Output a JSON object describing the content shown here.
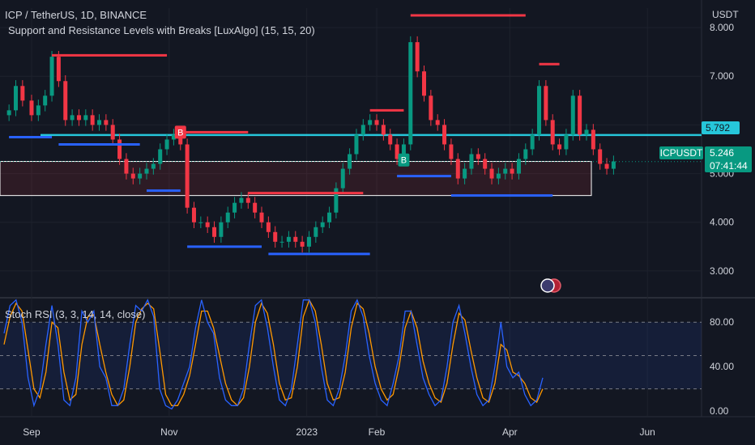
{
  "header": {
    "title": "ICP / TetherUS, 1D, BINANCE",
    "indicator": "Support and Resistance Levels with Breaks [LuxAlgo] (15, 15, 20)",
    "currency": "USDT"
  },
  "price_tags": {
    "symbol": "ICPUSDT",
    "last_price": "5.246",
    "countdown": "07:41:44",
    "resistance_price": "5.792"
  },
  "oscillator": {
    "title": "Stoch RSI (3, 3, 14, 14, close)",
    "ticks": [
      "80.00",
      "40.00",
      "0.00"
    ]
  },
  "colors": {
    "background": "#131722",
    "up": "#089981",
    "down": "#f23645",
    "resistance": "#f23645",
    "support": "#2962ff",
    "horizontal": "#26c6da",
    "k_line": "#2962ff",
    "d_line": "#ff9800"
  },
  "chart_data": [
    {
      "type": "candlestick",
      "title": "ICP / TetherUS, 1D, BINANCE",
      "x_ticks": [
        "Sep",
        "Nov",
        "2023",
        "Feb",
        "Apr",
        "Jun"
      ],
      "y_ticks": [
        "8.000",
        "7.000",
        "6.000",
        "5.000",
        "4.000",
        "3.000"
      ],
      "ylim": [
        2.5,
        8.4
      ],
      "close_series": [
        {
          "date": "2022-08-22",
          "close": 6.3
        },
        {
          "date": "2022-08-25",
          "close": 6.8
        },
        {
          "date": "2022-08-28",
          "close": 6.5
        },
        {
          "date": "2022-09-01",
          "close": 6.2
        },
        {
          "date": "2022-09-04",
          "close": 6.4
        },
        {
          "date": "2022-09-07",
          "close": 6.6
        },
        {
          "date": "2022-09-10",
          "close": 7.4
        },
        {
          "date": "2022-09-13",
          "close": 6.9
        },
        {
          "date": "2022-09-16",
          "close": 6.1
        },
        {
          "date": "2022-09-19",
          "close": 6.2
        },
        {
          "date": "2022-09-22",
          "close": 6.1
        },
        {
          "date": "2022-09-25",
          "close": 6.2
        },
        {
          "date": "2022-09-28",
          "close": 6.0
        },
        {
          "date": "2022-10-01",
          "close": 6.1
        },
        {
          "date": "2022-10-04",
          "close": 6.0
        },
        {
          "date": "2022-10-07",
          "close": 5.7
        },
        {
          "date": "2022-10-10",
          "close": 5.3
        },
        {
          "date": "2022-10-13",
          "close": 5.0
        },
        {
          "date": "2022-10-16",
          "close": 4.9
        },
        {
          "date": "2022-10-19",
          "close": 5.0
        },
        {
          "date": "2022-10-22",
          "close": 5.1
        },
        {
          "date": "2022-10-25",
          "close": 5.2
        },
        {
          "date": "2022-10-28",
          "close": 5.5
        },
        {
          "date": "2022-10-31",
          "close": 5.7
        },
        {
          "date": "2022-11-03",
          "close": 5.8
        },
        {
          "date": "2022-11-06",
          "close": 5.6
        },
        {
          "date": "2022-11-09",
          "close": 4.3
        },
        {
          "date": "2022-11-12",
          "close": 4.0
        },
        {
          "date": "2022-11-15",
          "close": 4.0
        },
        {
          "date": "2022-11-18",
          "close": 3.9
        },
        {
          "date": "2022-11-21",
          "close": 3.7
        },
        {
          "date": "2022-11-24",
          "close": 4.0
        },
        {
          "date": "2022-11-27",
          "close": 4.2
        },
        {
          "date": "2022-11-30",
          "close": 4.4
        },
        {
          "date": "2022-12-03",
          "close": 4.5
        },
        {
          "date": "2022-12-06",
          "close": 4.4
        },
        {
          "date": "2022-12-09",
          "close": 4.2
        },
        {
          "date": "2022-12-12",
          "close": 4.0
        },
        {
          "date": "2022-12-15",
          "close": 3.8
        },
        {
          "date": "2022-12-18",
          "close": 3.6
        },
        {
          "date": "2022-12-21",
          "close": 3.6
        },
        {
          "date": "2022-12-24",
          "close": 3.7
        },
        {
          "date": "2022-12-27",
          "close": 3.6
        },
        {
          "date": "2022-12-30",
          "close": 3.5
        },
        {
          "date": "2023-01-02",
          "close": 3.7
        },
        {
          "date": "2023-01-05",
          "close": 3.9
        },
        {
          "date": "2023-01-08",
          "close": 4.0
        },
        {
          "date": "2023-01-11",
          "close": 4.2
        },
        {
          "date": "2023-01-14",
          "close": 4.7
        },
        {
          "date": "2023-01-17",
          "close": 5.1
        },
        {
          "date": "2023-01-20",
          "close": 5.4
        },
        {
          "date": "2023-01-23",
          "close": 5.8
        },
        {
          "date": "2023-01-26",
          "close": 6.0
        },
        {
          "date": "2023-01-29",
          "close": 6.1
        },
        {
          "date": "2023-02-01",
          "close": 6.0
        },
        {
          "date": "2023-02-04",
          "close": 5.8
        },
        {
          "date": "2023-02-07",
          "close": 5.6
        },
        {
          "date": "2023-02-10",
          "close": 5.3
        },
        {
          "date": "2023-02-13",
          "close": 5.6
        },
        {
          "date": "2023-02-16",
          "close": 7.7
        },
        {
          "date": "2023-02-19",
          "close": 7.1
        },
        {
          "date": "2023-02-22",
          "close": 6.6
        },
        {
          "date": "2023-02-25",
          "close": 6.1
        },
        {
          "date": "2023-02-28",
          "close": 6.0
        },
        {
          "date": "2023-03-03",
          "close": 5.6
        },
        {
          "date": "2023-03-06",
          "close": 5.3
        },
        {
          "date": "2023-03-09",
          "close": 4.9
        },
        {
          "date": "2023-03-12",
          "close": 5.1
        },
        {
          "date": "2023-03-15",
          "close": 5.4
        },
        {
          "date": "2023-03-18",
          "close": 5.3
        },
        {
          "date": "2023-03-21",
          "close": 5.1
        },
        {
          "date": "2023-03-24",
          "close": 4.9
        },
        {
          "date": "2023-03-27",
          "close": 5.0
        },
        {
          "date": "2023-03-30",
          "close": 5.1
        },
        {
          "date": "2023-04-02",
          "close": 5.0
        },
        {
          "date": "2023-04-05",
          "close": 5.3
        },
        {
          "date": "2023-04-08",
          "close": 5.5
        },
        {
          "date": "2023-04-11",
          "close": 5.8
        },
        {
          "date": "2023-04-14",
          "close": 6.8
        },
        {
          "date": "2023-04-17",
          "close": 6.1
        },
        {
          "date": "2023-04-20",
          "close": 5.6
        },
        {
          "date": "2023-04-23",
          "close": 5.5
        },
        {
          "date": "2023-04-26",
          "close": 5.8
        },
        {
          "date": "2023-04-29",
          "close": 6.6
        },
        {
          "date": "2023-05-02",
          "close": 5.8
        },
        {
          "date": "2023-05-05",
          "close": 5.9
        },
        {
          "date": "2023-05-08",
          "close": 5.5
        },
        {
          "date": "2023-05-11",
          "close": 5.2
        },
        {
          "date": "2023-05-14",
          "close": 5.1
        },
        {
          "date": "2023-05-17",
          "close": 5.25
        }
      ],
      "resistance_levels": [
        {
          "start": "2022-09-10",
          "end": "2022-10-31",
          "value": 7.43
        },
        {
          "start": "2022-11-06",
          "end": "2022-12-06",
          "value": 5.85
        },
        {
          "start": "2022-12-06",
          "end": "2023-01-26",
          "value": 4.6
        },
        {
          "start": "2023-01-29",
          "end": "2023-02-13",
          "value": 6.3
        },
        {
          "start": "2023-02-16",
          "end": "2023-04-08",
          "value": 8.25
        },
        {
          "start": "2023-04-14",
          "end": "2023-04-23",
          "value": 7.25
        }
      ],
      "support_levels": [
        {
          "start": "2022-08-22",
          "end": "2022-09-10",
          "value": 5.75
        },
        {
          "start": "2022-09-13",
          "end": "2022-10-19",
          "value": 5.6
        },
        {
          "start": "2022-10-22",
          "end": "2022-11-06",
          "value": 4.65
        },
        {
          "start": "2022-11-09",
          "end": "2022-12-12",
          "value": 3.5
        },
        {
          "start": "2022-12-15",
          "end": "2023-01-29",
          "value": 3.35
        },
        {
          "start": "2023-02-10",
          "end": "2023-03-06",
          "value": 4.95
        },
        {
          "start": "2023-03-06",
          "end": "2023-04-20",
          "value": 4.55
        }
      ],
      "horizontal_level": 5.792,
      "zone": [
        4.55,
        5.25
      ],
      "break_labels": [
        {
          "date": "2022-11-06",
          "value": 5.85,
          "text": "B",
          "kind": "bear"
        },
        {
          "date": "2023-02-13",
          "value": 5.28,
          "text": "B",
          "kind": "bull"
        }
      ],
      "last_price": 5.246
    },
    {
      "type": "line",
      "title": "Stoch RSI (3, 3, 14, 14, close)",
      "ylim": [
        -5,
        102
      ],
      "y_ticks": [
        "80.00",
        "40.00",
        "0.00"
      ],
      "bands": [
        80,
        50,
        20
      ],
      "k": [
        70,
        95,
        100,
        80,
        30,
        5,
        20,
        60,
        95,
        60,
        10,
        5,
        30,
        90,
        80,
        90,
        40,
        30,
        5,
        5,
        20,
        60,
        95,
        90,
        100,
        85,
        20,
        5,
        2,
        10,
        25,
        40,
        75,
        100,
        80,
        70,
        30,
        10,
        5,
        5,
        20,
        60,
        95,
        100,
        75,
        40,
        10,
        5,
        20,
        60,
        100,
        100,
        80,
        40,
        10,
        5,
        20,
        50,
        90,
        100,
        85,
        50,
        25,
        10,
        5,
        25,
        50,
        90,
        90,
        60,
        30,
        15,
        5,
        10,
        40,
        80,
        95,
        70,
        40,
        15,
        5,
        10,
        40,
        80,
        40,
        30,
        35,
        15,
        5,
        10,
        30
      ],
      "d": [
        60,
        85,
        97,
        90,
        55,
        20,
        12,
        35,
        80,
        75,
        35,
        10,
        15,
        60,
        85,
        87,
        60,
        35,
        15,
        5,
        10,
        40,
        80,
        92,
        97,
        92,
        55,
        15,
        5,
        5,
        15,
        32,
        60,
        90,
        90,
        75,
        50,
        25,
        10,
        5,
        12,
        40,
        80,
        97,
        88,
        60,
        25,
        10,
        12,
        40,
        85,
        100,
        90,
        60,
        25,
        10,
        12,
        35,
        75,
        97,
        92,
        70,
        40,
        20,
        10,
        15,
        40,
        75,
        90,
        75,
        45,
        25,
        12,
        8,
        25,
        60,
        88,
        82,
        55,
        30,
        12,
        8,
        25,
        60,
        55,
        35,
        32,
        25,
        12,
        8,
        20
      ]
    }
  ]
}
